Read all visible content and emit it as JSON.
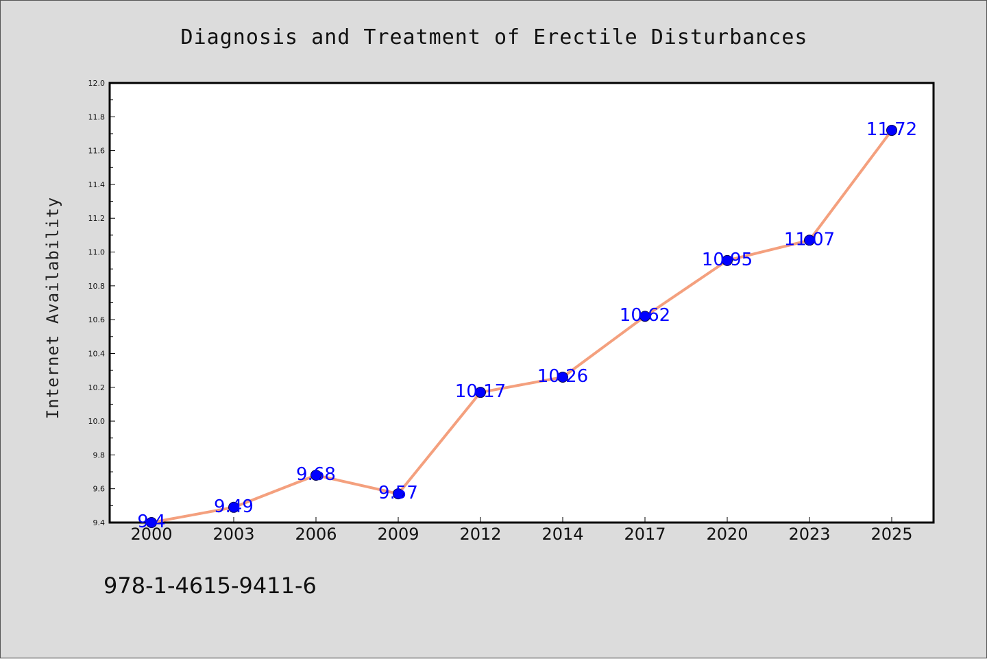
{
  "chart_data": {
    "type": "line",
    "title": "Diagnosis and Treatment of Erectile Disturbances",
    "xlabel": "",
    "ylabel": "Internet Availability",
    "categories": [
      "2000",
      "2003",
      "2006",
      "2009",
      "2012",
      "2014",
      "2017",
      "2020",
      "2023",
      "2025"
    ],
    "values": [
      9.4,
      9.49,
      9.68,
      9.57,
      10.17,
      10.26,
      10.62,
      10.95,
      11.07,
      11.72
    ],
    "data_labels": [
      "9.4",
      "9.49",
      "9.68",
      "9.57",
      "10.17",
      "10.26",
      "10.62",
      "10.95",
      "11.07",
      "11.72"
    ],
    "y_ticks": [
      "9.4",
      "9.6",
      "9.8",
      "10.0",
      "10.2",
      "10.4",
      "10.6",
      "10.8",
      "11.0",
      "11.2",
      "11.4",
      "11.6",
      "11.8",
      "12.0"
    ],
    "ylim": [
      9.4,
      12.0
    ],
    "grid": false,
    "legend": "none",
    "line_color": "#f4a07e",
    "marker_color": "#0000ff",
    "label_color": "#0000ff"
  },
  "footer": {
    "isbn": "978-1-4615-9411-6"
  }
}
